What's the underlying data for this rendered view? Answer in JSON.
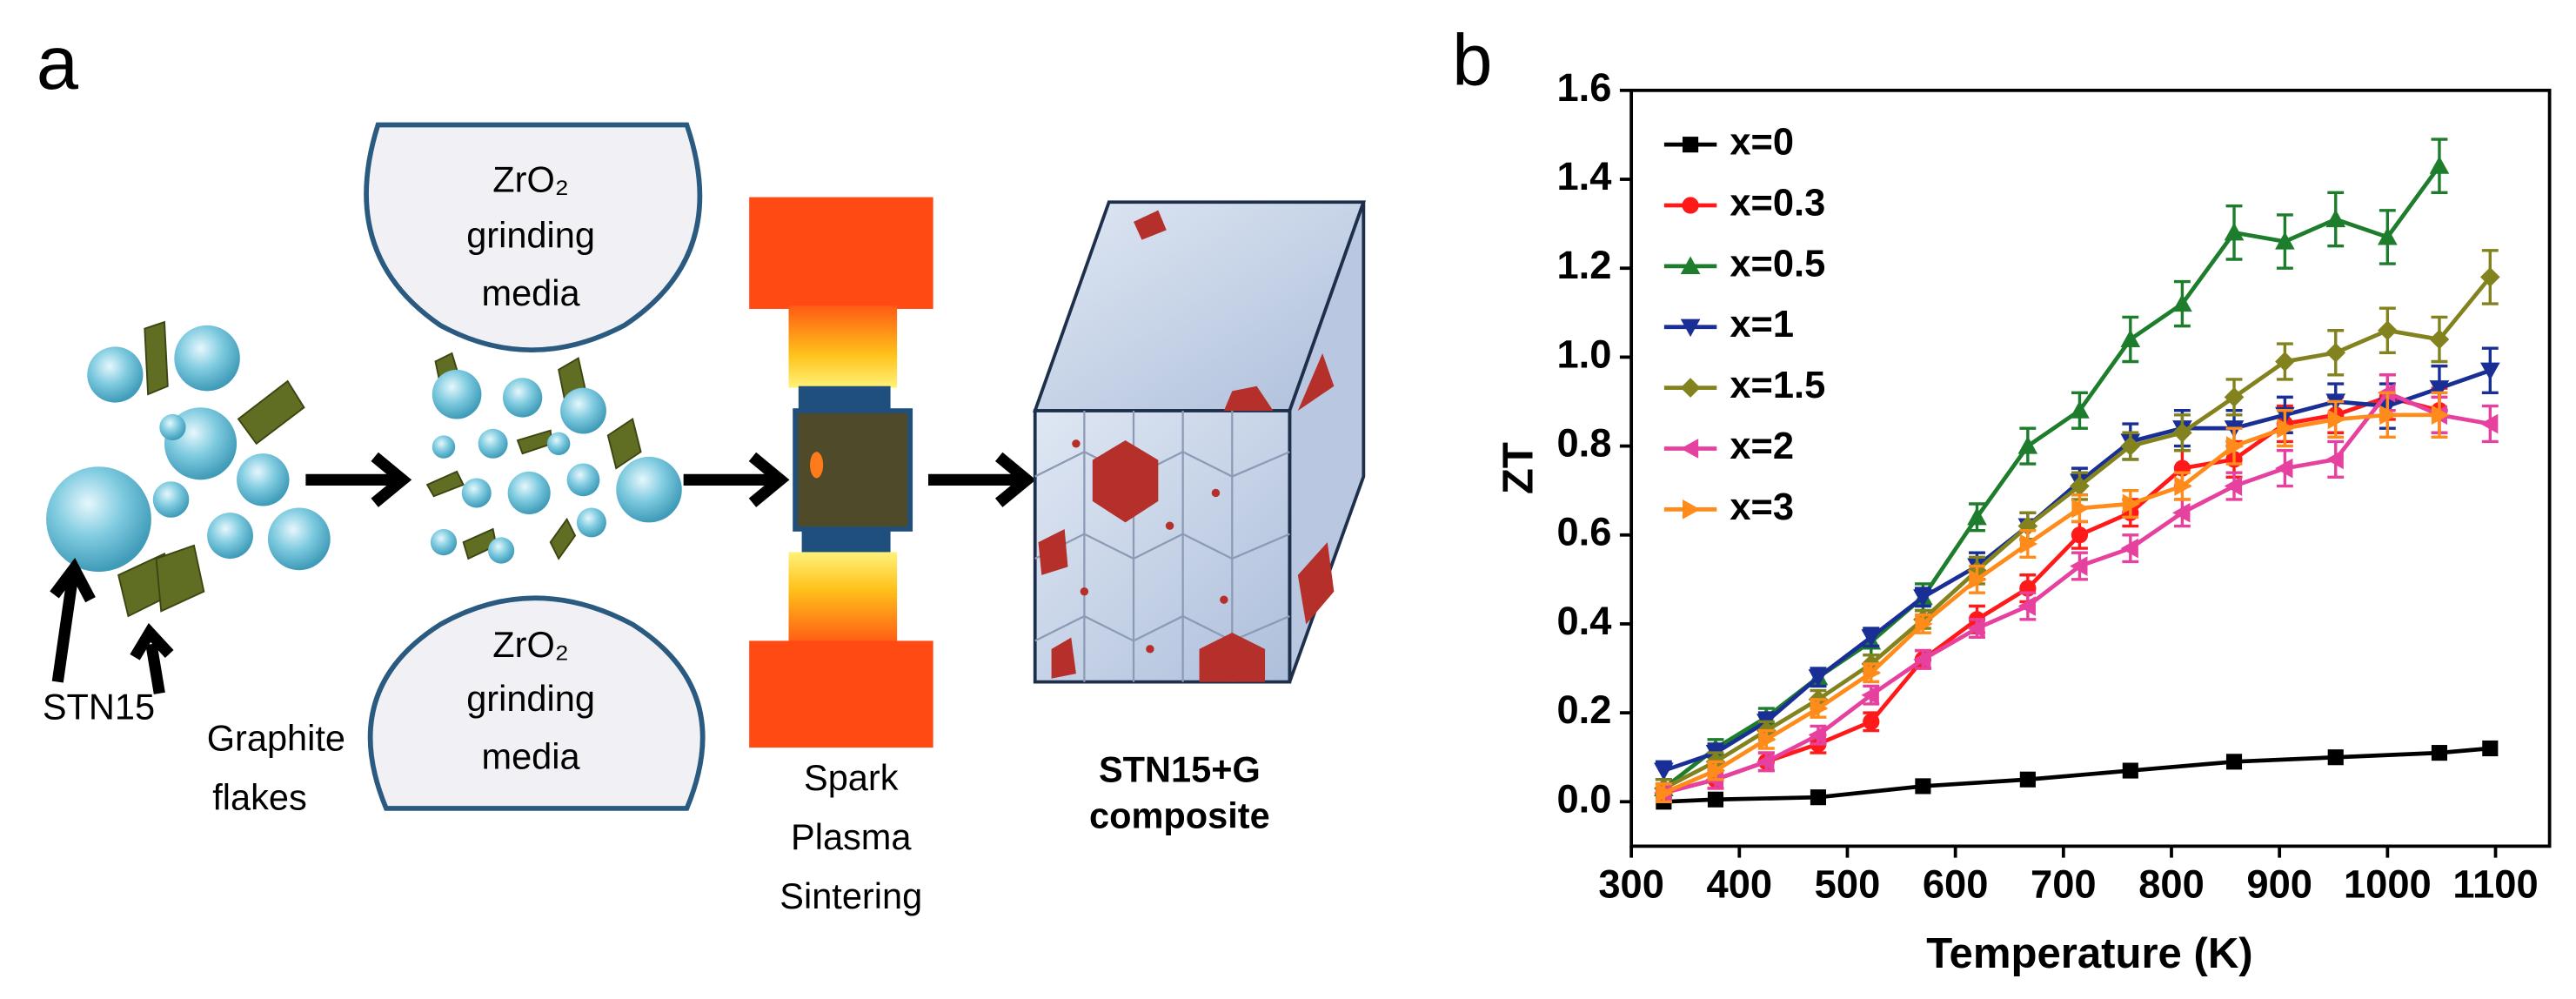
{
  "diagram": {
    "label": "a",
    "media_top": [
      "ZrO₂",
      "grinding",
      "media"
    ],
    "media_bottom": [
      "ZrO₂",
      "grinding",
      "media"
    ],
    "stn15": "STN15",
    "graphite": [
      "Graphite",
      "flakes"
    ],
    "sps": [
      "Spark",
      "Plasma",
      "Sintering"
    ],
    "product": [
      "STN15+G",
      "composite"
    ]
  },
  "chart_data": {
    "type": "line",
    "panel_label": "b",
    "xlabel": "Temperature (K)",
    "ylabel": "ZT",
    "xlim": [
      300,
      1150
    ],
    "ylim": [
      -0.1,
      1.6
    ],
    "xticks": [
      300,
      400,
      500,
      600,
      700,
      800,
      900,
      1000,
      1100
    ],
    "yticks": [
      {
        "value": 0,
        "label": "0.0"
      },
      0.2,
      0.4,
      0.6,
      0.8,
      {
        "value": 1,
        "label": "1.0"
      },
      1.2,
      1.4,
      1.6
    ],
    "legend": "upper left",
    "series": [
      {
        "name": "x=0",
        "color": "#000000",
        "marker": "square",
        "x": [
          330,
          378,
          473,
          570,
          667,
          762,
          858,
          952,
          1048,
          1095
        ],
        "values": [
          0.0,
          0.005,
          0.01,
          0.035,
          0.05,
          0.07,
          0.09,
          0.1,
          0.11,
          0.12
        ]
      },
      {
        "name": "x=0.3",
        "color": "#ff1a1a",
        "marker": "circle",
        "x": [
          330,
          378,
          425,
          473,
          522,
          570,
          620,
          667,
          715,
          762,
          810,
          858,
          905,
          952,
          1000,
          1048
        ],
        "values": [
          0.02,
          0.05,
          0.09,
          0.13,
          0.18,
          0.32,
          0.41,
          0.48,
          0.6,
          0.65,
          0.75,
          0.77,
          0.85,
          0.87,
          0.91,
          0.88
        ],
        "errors": [
          0.02,
          0.02,
          0.02,
          0.02,
          0.02,
          0.02,
          0.03,
          0.03,
          0.03,
          0.03,
          0.04,
          0.04,
          0.04,
          0.04,
          0.05,
          0.05
        ]
      },
      {
        "name": "x=0.5",
        "color": "#1d7d2c",
        "marker": "triangle-up",
        "x": [
          330,
          378,
          425,
          473,
          522,
          570,
          620,
          667,
          715,
          762,
          810,
          858,
          905,
          952,
          1000,
          1048
        ],
        "values": [
          0.03,
          0.12,
          0.19,
          0.28,
          0.36,
          0.46,
          0.64,
          0.8,
          0.88,
          1.04,
          1.12,
          1.28,
          1.26,
          1.31,
          1.27,
          1.43
        ],
        "errors": [
          0.02,
          0.02,
          0.02,
          0.02,
          0.03,
          0.03,
          0.03,
          0.04,
          0.04,
          0.05,
          0.05,
          0.06,
          0.06,
          0.06,
          0.06,
          0.06
        ]
      },
      {
        "name": "x=1",
        "color": "#1a2f96",
        "marker": "triangle-down",
        "x": [
          330,
          378,
          425,
          473,
          522,
          570,
          620,
          667,
          715,
          762,
          810,
          858,
          905,
          952,
          1000,
          1048,
          1095
        ],
        "values": [
          0.07,
          0.11,
          0.18,
          0.28,
          0.37,
          0.46,
          0.53,
          0.62,
          0.72,
          0.81,
          0.84,
          0.84,
          0.87,
          0.9,
          0.89,
          0.93,
          0.97
        ],
        "errors": [
          0.02,
          0.02,
          0.02,
          0.02,
          0.02,
          0.02,
          0.03,
          0.03,
          0.03,
          0.04,
          0.04,
          0.04,
          0.04,
          0.04,
          0.05,
          0.05,
          0.05
        ]
      },
      {
        "name": "x=1.5",
        "color": "#82821e",
        "marker": "diamond",
        "x": [
          330,
          378,
          425,
          473,
          522,
          570,
          620,
          667,
          715,
          762,
          810,
          858,
          905,
          952,
          1000,
          1048,
          1095
        ],
        "values": [
          0.03,
          0.09,
          0.16,
          0.23,
          0.31,
          0.41,
          0.52,
          0.62,
          0.71,
          0.8,
          0.83,
          0.91,
          0.99,
          1.01,
          1.06,
          1.04,
          1.18
        ],
        "errors": [
          0.02,
          0.02,
          0.02,
          0.02,
          0.02,
          0.02,
          0.03,
          0.03,
          0.03,
          0.03,
          0.04,
          0.04,
          0.04,
          0.05,
          0.05,
          0.05,
          0.06
        ]
      },
      {
        "name": "x=2",
        "color": "#e6419e",
        "marker": "triangle-left",
        "x": [
          330,
          378,
          425,
          473,
          522,
          570,
          620,
          667,
          715,
          762,
          810,
          858,
          905,
          952,
          1000,
          1048,
          1095
        ],
        "values": [
          0.02,
          0.05,
          0.09,
          0.15,
          0.24,
          0.32,
          0.39,
          0.44,
          0.53,
          0.57,
          0.65,
          0.71,
          0.75,
          0.77,
          0.92,
          0.87,
          0.85
        ],
        "errors": [
          0.02,
          0.02,
          0.02,
          0.02,
          0.02,
          0.02,
          0.02,
          0.03,
          0.03,
          0.03,
          0.03,
          0.03,
          0.04,
          0.04,
          0.04,
          0.04,
          0.04
        ]
      },
      {
        "name": "x=3",
        "color": "#ff8c1a",
        "marker": "triangle-right",
        "x": [
          330,
          378,
          425,
          473,
          522,
          570,
          620,
          667,
          715,
          762,
          810,
          858,
          905,
          952,
          1000,
          1048
        ],
        "values": [
          0.02,
          0.07,
          0.14,
          0.21,
          0.29,
          0.4,
          0.5,
          0.58,
          0.66,
          0.67,
          0.71,
          0.8,
          0.84,
          0.86,
          0.87,
          0.87
        ],
        "errors": [
          0.02,
          0.02,
          0.02,
          0.02,
          0.02,
          0.02,
          0.03,
          0.03,
          0.03,
          0.03,
          0.03,
          0.04,
          0.04,
          0.04,
          0.05,
          0.05
        ]
      }
    ]
  }
}
